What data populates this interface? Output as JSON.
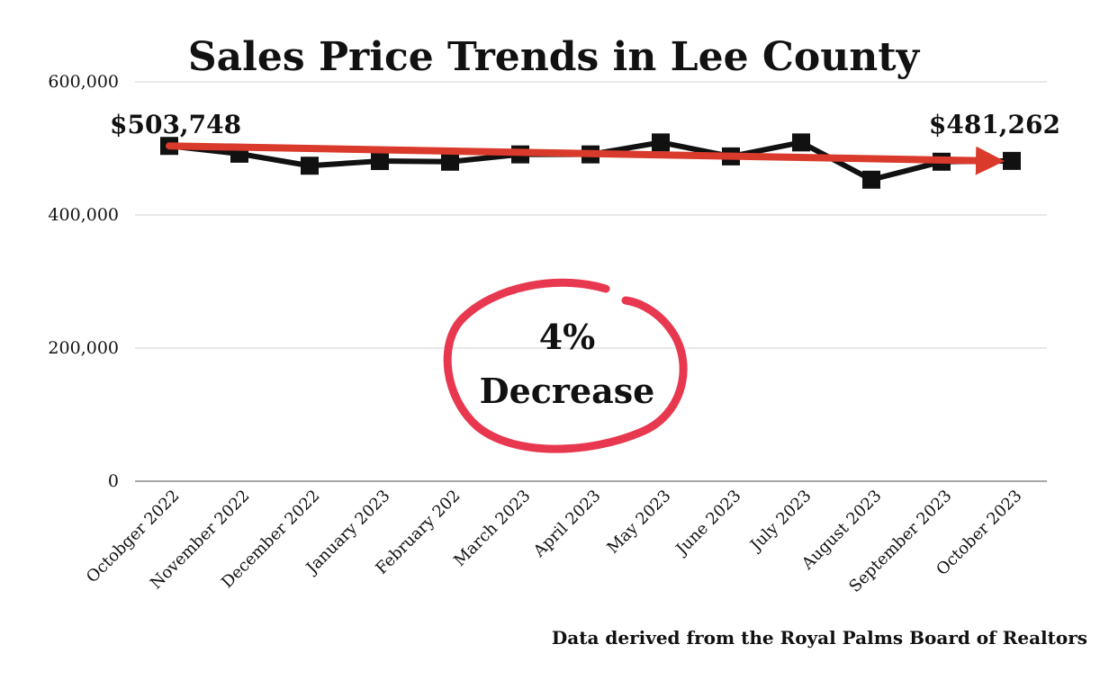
{
  "chart_data": {
    "type": "line",
    "title": "Sales Price Trends in Lee County",
    "categories": [
      "Octobger 2022",
      "November 2022",
      "December 2022",
      "January 2023",
      "February 202",
      "March 2023",
      "April 2023",
      "May 2023",
      "June 2023",
      "July 2023",
      "August 2023",
      "September 2023",
      "October 2023"
    ],
    "values": [
      503748,
      492000,
      474000,
      481000,
      480000,
      491000,
      491000,
      509000,
      488000,
      509000,
      453000,
      480000,
      481262
    ],
    "ylim": [
      0,
      600000
    ],
    "yticks": [
      {
        "value": 0,
        "label": "0"
      },
      {
        "value": 200000,
        "label": "200,000"
      },
      {
        "value": 400000,
        "label": "400,000"
      },
      {
        "value": 600000,
        "label": "600,000"
      }
    ],
    "grid": true,
    "legend": "none",
    "line_color": "#111111",
    "marker": "square",
    "start_label": "$503,748",
    "end_label": "$481,262",
    "trend_arrow": {
      "from": 503748,
      "to": 481262,
      "color": "#d93a2b"
    },
    "callout": {
      "line1": "4%",
      "line2": "Decrease",
      "circle_color": "#e8384f"
    },
    "source": "Data derived from the Royal Palms Board of Realtors"
  }
}
